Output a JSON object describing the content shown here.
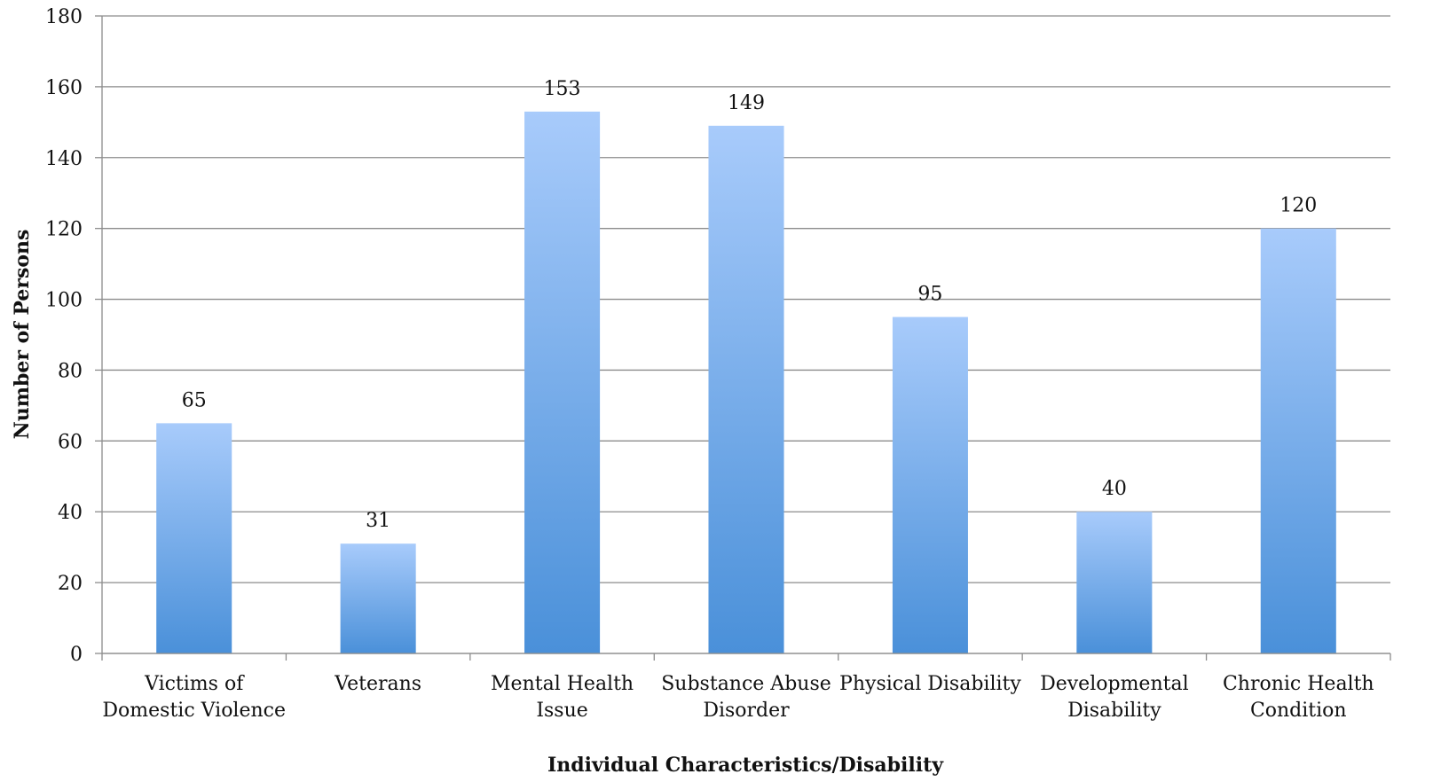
{
  "chart_data": {
    "type": "bar",
    "title": "",
    "xlabel": "Individual Characteristics/Disability",
    "ylabel": "Number of Persons",
    "categories": [
      [
        "Victims of",
        "Domestic Violence"
      ],
      [
        "Veterans"
      ],
      [
        "Mental Health",
        "Issue"
      ],
      [
        "Substance Abuse",
        "Disorder"
      ],
      [
        "Physical Disability"
      ],
      [
        "Developmental",
        "Disability"
      ],
      [
        "Chronic Health",
        "Condition"
      ]
    ],
    "values": [
      65,
      31,
      153,
      149,
      95,
      40,
      120
    ],
    "ylim": [
      0,
      180
    ],
    "yticks": [
      0,
      20,
      40,
      60,
      80,
      100,
      120,
      140,
      160,
      180
    ],
    "grid": true,
    "legend": "none",
    "colors": {
      "bar_top": "#a8cbfb",
      "bar_bottom": "#4a90d9",
      "gridline": "#8c8c8c",
      "axis": "#8c8c8c"
    }
  }
}
